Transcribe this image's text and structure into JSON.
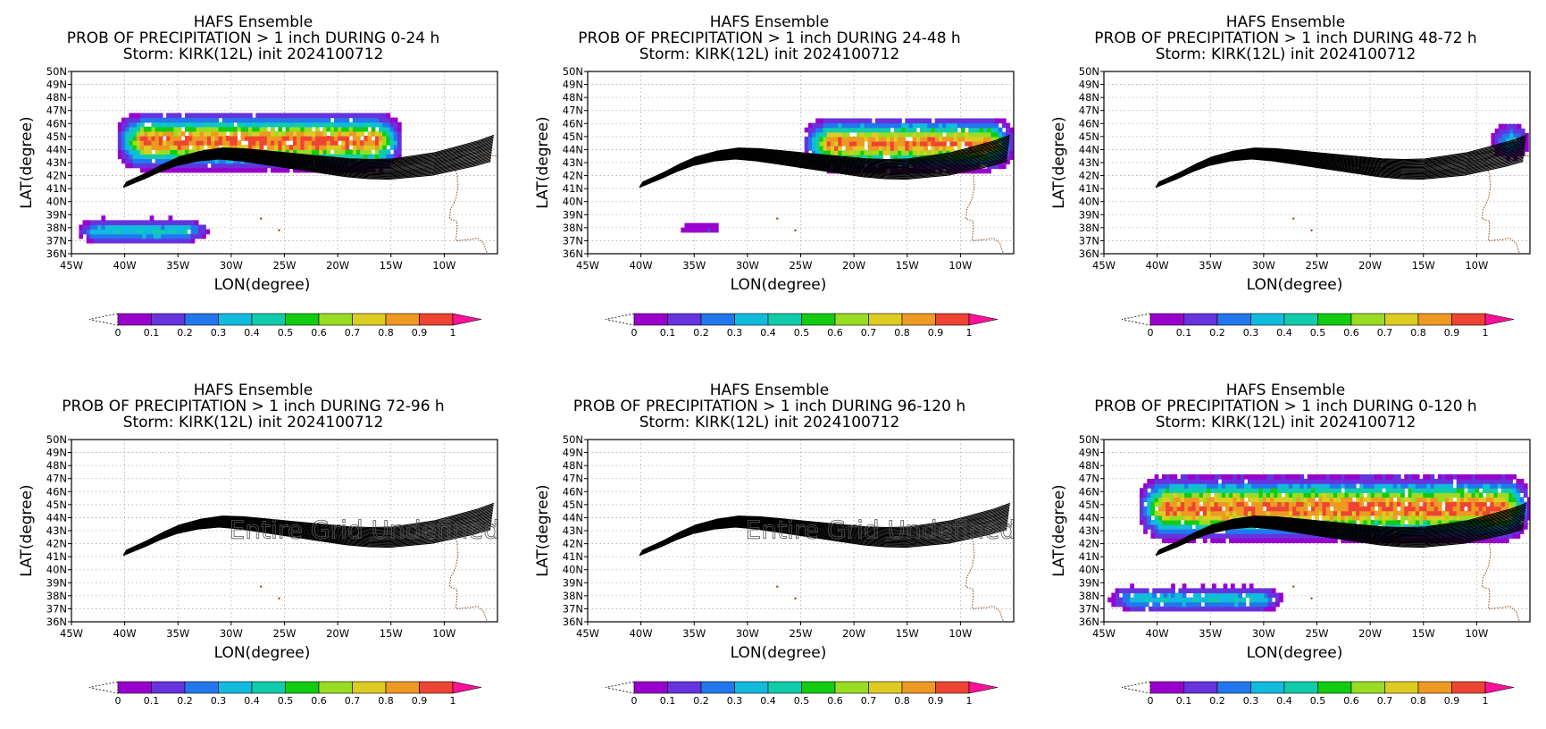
{
  "colors": {
    "scale": [
      "#9900cc",
      "#6633dd",
      "#2277ee",
      "#11bbdd",
      "#11ccaa",
      "#11cc11",
      "#99dd22",
      "#ddcc22",
      "#ee9922",
      "#ee4433",
      "#ff1199"
    ],
    "track": "#000000",
    "coast": "#8b4513",
    "grid": "#aaaaaa"
  },
  "chart_data": [
    {
      "type": "heatmap",
      "title": [
        "HAFS Ensemble",
        "PROB OF PRECIPITATION > 1 inch DURING  0-24 h",
        "Storm: KIRK(12L) init 2024100712"
      ],
      "xlabel": "LON(degree)",
      "ylabel": "LAT(degree)",
      "xlim": [
        -45,
        -5
      ],
      "ylim": [
        36,
        50
      ],
      "xticks": [
        "45W",
        "40W",
        "35W",
        "30W",
        "25W",
        "20W",
        "15W",
        "10W"
      ],
      "yticks": [
        "36N",
        "37N",
        "38N",
        "39N",
        "40N",
        "41N",
        "42N",
        "43N",
        "44N",
        "45N",
        "46N",
        "47N",
        "48N",
        "49N",
        "50N"
      ],
      "colorbar": {
        "levels": [
          "0",
          "0.1",
          "0.2",
          "0.3",
          "0.4",
          "0.5",
          "0.6",
          "0.7",
          "0.8",
          "0.9",
          "1"
        ]
      },
      "grid": true,
      "overlay_text": "",
      "regions": [
        {
          "lon": [
            -41,
            -14
          ],
          "lat_center": 44.5,
          "half_width": 1.6,
          "peak": 0.95
        },
        {
          "lon": [
            -45,
            -32
          ],
          "lat_center": 37.6,
          "half_width": 0.8,
          "peak": 0.4
        }
      ]
    },
    {
      "type": "heatmap",
      "title": [
        "HAFS Ensemble",
        "PROB OF PRECIPITATION > 1 inch DURING 24-48 h",
        "Storm: KIRK(12L) init 2024100712"
      ],
      "xlabel": "LON(degree)",
      "ylabel": "LAT(degree)",
      "xlim": [
        -45,
        -5
      ],
      "ylim": [
        36,
        50
      ],
      "xticks": [
        "45W",
        "40W",
        "35W",
        "30W",
        "25W",
        "20W",
        "15W",
        "10W"
      ],
      "yticks": [
        "36N",
        "37N",
        "38N",
        "39N",
        "40N",
        "41N",
        "42N",
        "43N",
        "44N",
        "45N",
        "46N",
        "47N",
        "48N",
        "49N",
        "50N"
      ],
      "colorbar": {
        "levels": [
          "0",
          "0.1",
          "0.2",
          "0.3",
          "0.4",
          "0.5",
          "0.6",
          "0.7",
          "0.8",
          "0.9",
          "1"
        ]
      },
      "grid": true,
      "overlay_text": "",
      "regions": [
        {
          "lon": [
            -25,
            -5
          ],
          "lat_center": 44.3,
          "half_width": 1.5,
          "peak": 0.9
        },
        {
          "lon": [
            -38,
            -31
          ],
          "lat_center": 37.8,
          "half_width": 0.6,
          "peak": 0.1
        }
      ]
    },
    {
      "type": "heatmap",
      "title": [
        "HAFS Ensemble",
        "PROB OF PRECIPITATION > 1 inch DURING 48-72 h",
        "Storm: KIRK(12L) init 2024100712"
      ],
      "xlabel": "LON(degree)",
      "ylabel": "LAT(degree)",
      "xlim": [
        -45,
        -5
      ],
      "ylim": [
        36,
        50
      ],
      "xticks": [
        "45W",
        "40W",
        "35W",
        "30W",
        "25W",
        "20W",
        "15W",
        "10W"
      ],
      "yticks": [
        "36N",
        "37N",
        "38N",
        "39N",
        "40N",
        "41N",
        "42N",
        "43N",
        "44N",
        "45N",
        "46N",
        "47N",
        "48N",
        "49N",
        "50N"
      ],
      "colorbar": {
        "levels": [
          "0",
          "0.1",
          "0.2",
          "0.3",
          "0.4",
          "0.5",
          "0.6",
          "0.7",
          "0.8",
          "0.9",
          "1"
        ]
      },
      "grid": true,
      "overlay_text": "",
      "regions": [
        {
          "lon": [
            -9,
            -5
          ],
          "lat_center": 44.5,
          "half_width": 1.2,
          "peak": 0.5
        }
      ]
    },
    {
      "type": "heatmap",
      "title": [
        "HAFS Ensemble",
        "PROB OF PRECIPITATION > 1 inch DURING 72-96 h",
        "Storm: KIRK(12L) init 2024100712"
      ],
      "xlabel": "LON(degree)",
      "ylabel": "LAT(degree)",
      "xlim": [
        -45,
        -5
      ],
      "ylim": [
        36,
        50
      ],
      "xticks": [
        "45W",
        "40W",
        "35W",
        "30W",
        "25W",
        "20W",
        "15W",
        "10W"
      ],
      "yticks": [
        "36N",
        "37N",
        "38N",
        "39N",
        "40N",
        "41N",
        "42N",
        "43N",
        "44N",
        "45N",
        "46N",
        "47N",
        "48N",
        "49N",
        "50N"
      ],
      "colorbar": {
        "levels": [
          "0",
          "0.1",
          "0.2",
          "0.3",
          "0.4",
          "0.5",
          "0.6",
          "0.7",
          "0.8",
          "0.9",
          "1"
        ]
      },
      "grid": true,
      "overlay_text": "Entire Grid Undefined",
      "regions": []
    },
    {
      "type": "heatmap",
      "title": [
        "HAFS Ensemble",
        "PROB OF PRECIPITATION > 1 inch DURING 96-120 h",
        "Storm: KIRK(12L) init 2024100712"
      ],
      "xlabel": "LON(degree)",
      "ylabel": "LAT(degree)",
      "xlim": [
        -45,
        -5
      ],
      "ylim": [
        36,
        50
      ],
      "xticks": [
        "45W",
        "40W",
        "35W",
        "30W",
        "25W",
        "20W",
        "15W",
        "10W"
      ],
      "yticks": [
        "36N",
        "37N",
        "38N",
        "39N",
        "40N",
        "41N",
        "42N",
        "43N",
        "44N",
        "45N",
        "46N",
        "47N",
        "48N",
        "49N",
        "50N"
      ],
      "colorbar": {
        "levels": [
          "0",
          "0.1",
          "0.2",
          "0.3",
          "0.4",
          "0.5",
          "0.6",
          "0.7",
          "0.8",
          "0.9",
          "1"
        ]
      },
      "grid": true,
      "overlay_text": "Entire Grid Undefined",
      "regions": []
    },
    {
      "type": "heatmap",
      "title": [
        "HAFS Ensemble",
        "PROB OF PRECIPITATION > 1 inch DURING 0-120 h",
        "Storm: KIRK(12L) init 2024100712"
      ],
      "xlabel": "LON(degree)",
      "ylabel": "LAT(degree)",
      "xlim": [
        -45,
        -5
      ],
      "ylim": [
        36,
        50
      ],
      "xticks": [
        "45W",
        "40W",
        "35W",
        "30W",
        "25W",
        "20W",
        "15W",
        "10W"
      ],
      "yticks": [
        "36N",
        "37N",
        "38N",
        "39N",
        "40N",
        "41N",
        "42N",
        "43N",
        "44N",
        "45N",
        "46N",
        "47N",
        "48N",
        "49N",
        "50N"
      ],
      "colorbar": {
        "levels": [
          "0",
          "0.1",
          "0.2",
          "0.3",
          "0.4",
          "0.5",
          "0.6",
          "0.7",
          "0.8",
          "0.9",
          "1"
        ]
      },
      "grid": true,
      "overlay_text": "",
      "regions": [
        {
          "lon": [
            -42,
            -5
          ],
          "lat_center": 44.6,
          "half_width": 1.8,
          "peak": 0.95
        },
        {
          "lon": [
            -45,
            -28
          ],
          "lat_center": 37.6,
          "half_width": 0.8,
          "peak": 0.4
        }
      ]
    }
  ],
  "track_data": {
    "lon": [
      -40,
      -38,
      -36.5,
      -35,
      -33,
      -31,
      -29,
      -27,
      -25,
      -23,
      -21,
      -19,
      -17,
      -15,
      -13,
      -11,
      -9,
      -7,
      -5.5
    ],
    "lat": [
      41.3,
      42,
      42.6,
      43.1,
      43.5,
      43.7,
      43.6,
      43.4,
      43.2,
      43.0,
      42.8,
      42.6,
      42.5,
      42.5,
      42.7,
      42.9,
      43.3,
      43.7,
      44.1
    ],
    "members": 20
  }
}
